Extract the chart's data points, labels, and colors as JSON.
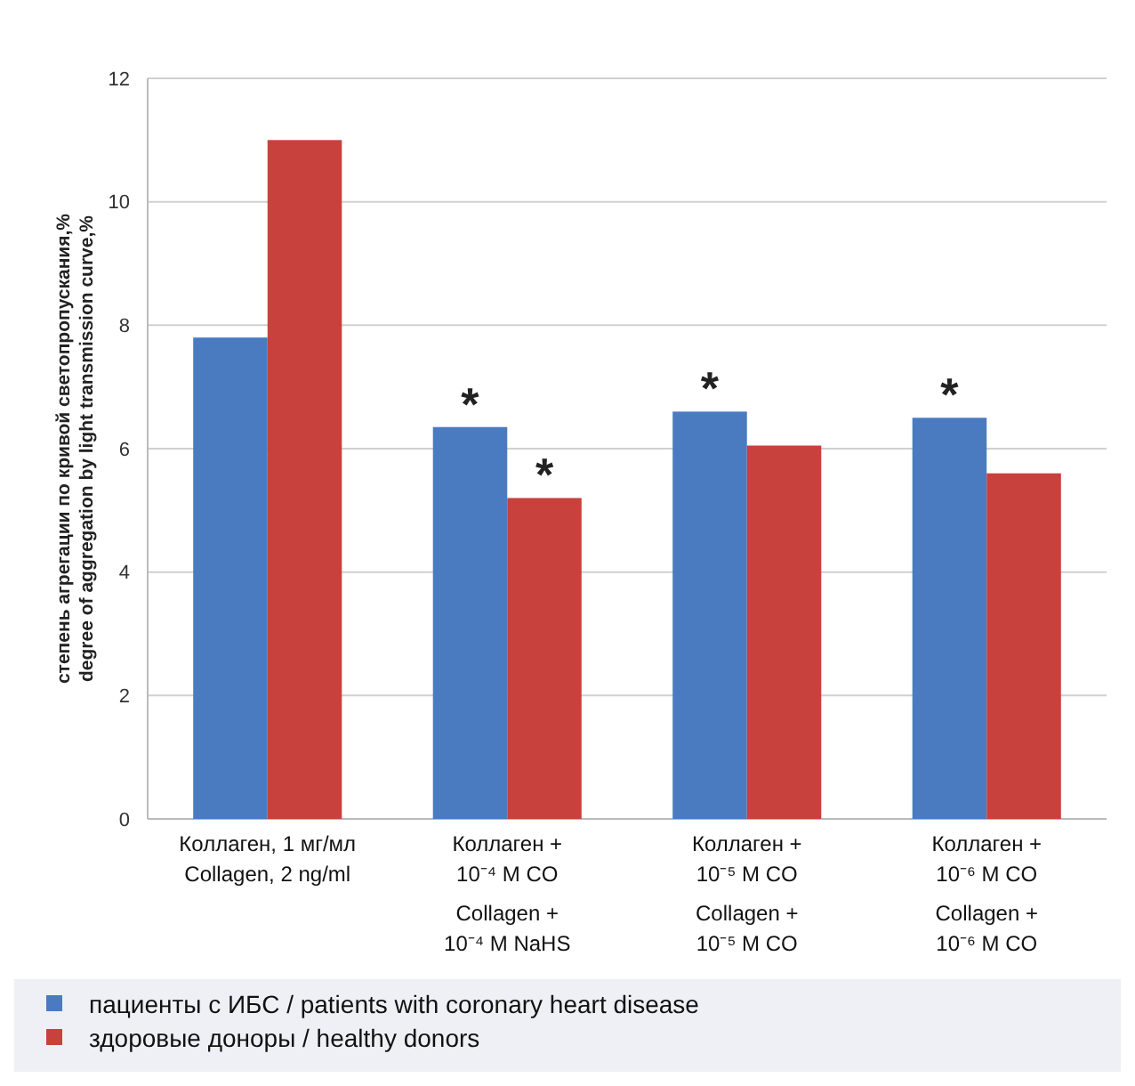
{
  "chart_data": {
    "type": "bar",
    "ylabel": "степень агрегации по кривой светопропускания,%\ndegree of aggregation by light transmission curve,%",
    "categories": [
      "Коллаген, 1 мг/мл\nCollagen, 2 ng/ml",
      "Коллаген +\n10⁻⁴ M CO\nCollagen +\n10⁻⁴ M NaHS",
      "Коллаген +\n10⁻⁵ M CO\nCollagen +\n10⁻⁵ M CO",
      "Коллаген +\n10⁻⁶ M CO\nCollagen +\n10⁻⁶ M CO"
    ],
    "series": [
      {
        "name": "пациенты с ИБС / patients with coronary heart disease",
        "color": "#4a7bc0",
        "values": [
          7.8,
          6.35,
          6.6,
          6.5
        ]
      },
      {
        "name": "здоровые доноры / healthy donors",
        "color": "#c8413d",
        "values": [
          11.0,
          5.2,
          6.05,
          5.6
        ]
      }
    ],
    "ylim": [
      0,
      12
    ],
    "yticks": [
      0,
      2,
      4,
      6,
      8,
      10,
      12
    ],
    "grid": "y",
    "legend": "bottom",
    "annotations": [
      {
        "text": "*",
        "x": "Коллаген +\n10⁻⁴ M CO\nCollagen +\n10⁻⁴ M NaHS",
        "y": 6.35
      },
      {
        "text": "*",
        "x": "Коллаген +\n10⁻⁴ M CO\nCollagen +\n10⁻⁴ M NaHS",
        "y": 5.2
      },
      {
        "text": "*",
        "x": "Коллаген +\n10⁻⁵ M CO\nCollagen +\n10⁻⁵ M CO",
        "y": 6.6
      },
      {
        "text": "*",
        "x": "Коллаген +\n10⁻⁶ M CO\nCollagen +\n10⁻⁶ M CO",
        "y": 6.5
      }
    ]
  }
}
